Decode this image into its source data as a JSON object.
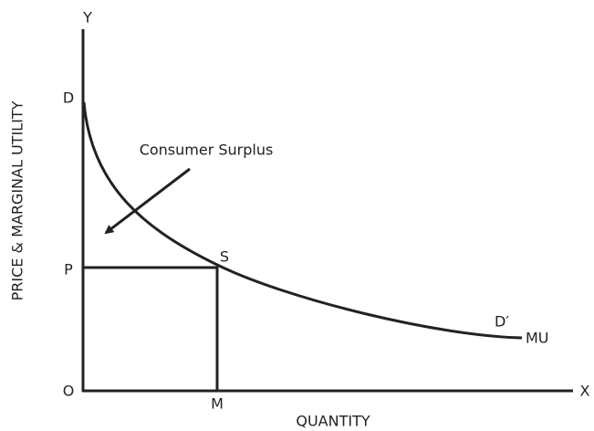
{
  "axes": {
    "y_label": "PRICE & MARGINAL UTILITY",
    "x_label": "QUANTITY",
    "y_end": "Y",
    "x_end": "X",
    "origin": "O"
  },
  "points": {
    "d": "D",
    "p": "P",
    "m": "M",
    "s": "S",
    "d_prime": "D′"
  },
  "curve": {
    "label": "MU"
  },
  "annotation": {
    "text": "Consumer Surplus"
  }
}
